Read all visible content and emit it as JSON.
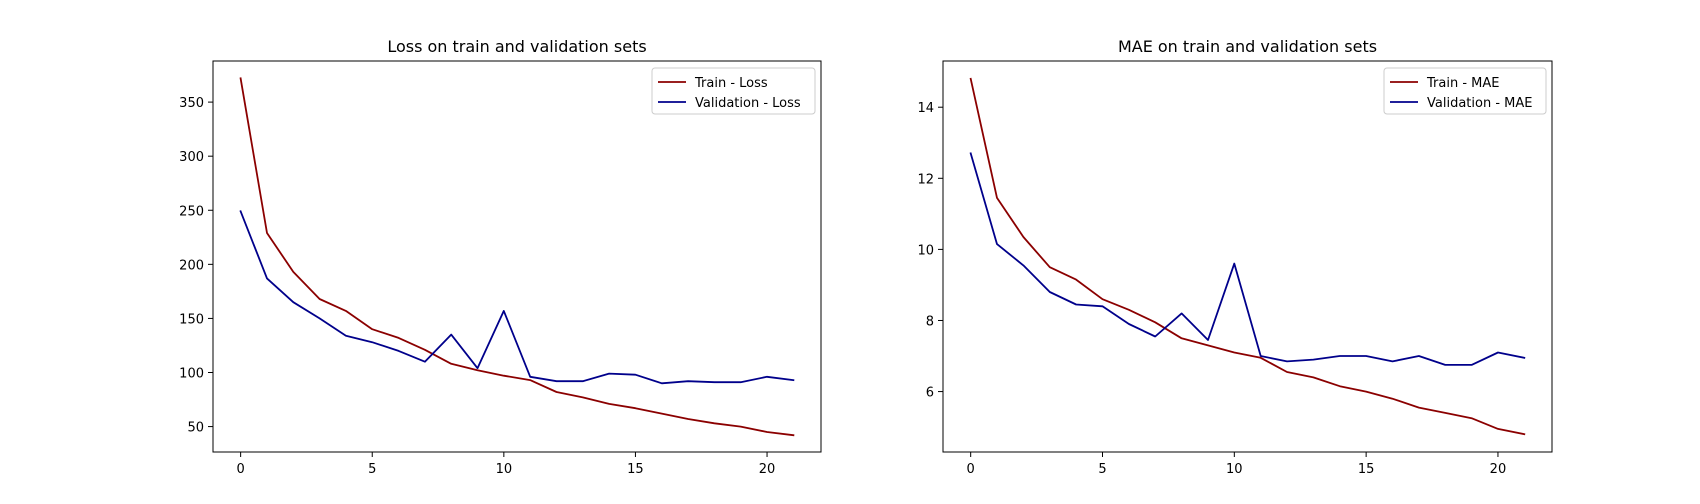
{
  "chart_data": [
    {
      "type": "line",
      "title": "Loss on train and validation sets",
      "xlabel": "",
      "ylabel": "",
      "x": [
        0,
        1,
        2,
        3,
        4,
        5,
        6,
        7,
        8,
        9,
        10,
        11,
        12,
        13,
        14,
        15,
        16,
        17,
        18,
        19,
        20,
        21
      ],
      "xlim": [
        -1.05,
        22.05
      ],
      "ylim": [
        26.5,
        388
      ],
      "xticks": [
        0,
        5,
        10,
        15,
        20
      ],
      "yticks": [
        50,
        100,
        150,
        200,
        250,
        300,
        350
      ],
      "grid": false,
      "legend": "top-right",
      "series": [
        {
          "name": "Train - Loss",
          "color": "#8b0000",
          "values": [
            372,
            229,
            193,
            168,
            157,
            140,
            132,
            121,
            108,
            102,
            97,
            93,
            82,
            77,
            71,
            67,
            62,
            57,
            53,
            50,
            45,
            42
          ]
        },
        {
          "name": "Validation - Loss",
          "color": "#00008b",
          "values": [
            249,
            187,
            165,
            150,
            134,
            128,
            120,
            110,
            135,
            104,
            157,
            96,
            92,
            92,
            99,
            98,
            90,
            92,
            91,
            91,
            96,
            93
          ]
        }
      ]
    },
    {
      "type": "line",
      "title": "MAE on train and validation sets",
      "xlabel": "",
      "ylabel": "",
      "x": [
        0,
        1,
        2,
        3,
        4,
        5,
        6,
        7,
        8,
        9,
        10,
        11,
        12,
        13,
        14,
        15,
        16,
        17,
        18,
        19,
        20,
        21
      ],
      "xlim": [
        -1.05,
        22.05
      ],
      "ylim": [
        4.3,
        15.3
      ],
      "xticks": [
        0,
        5,
        10,
        15,
        20
      ],
      "yticks": [
        6,
        8,
        10,
        12,
        14
      ],
      "grid": false,
      "legend": "top-right",
      "series": [
        {
          "name": "Train - MAE",
          "color": "#8b0000",
          "values": [
            14.8,
            11.45,
            10.35,
            9.5,
            9.15,
            8.6,
            8.3,
            7.95,
            7.5,
            7.3,
            7.1,
            6.95,
            6.55,
            6.4,
            6.15,
            6.0,
            5.8,
            5.55,
            5.4,
            5.25,
            4.95,
            4.8
          ]
        },
        {
          "name": "Validation - MAE",
          "color": "#00008b",
          "values": [
            12.7,
            10.15,
            9.55,
            8.8,
            8.45,
            8.4,
            7.9,
            7.55,
            8.2,
            7.45,
            9.6,
            7.0,
            6.85,
            6.9,
            7.0,
            7.0,
            6.85,
            7.0,
            6.75,
            6.75,
            7.1,
            6.95
          ]
        }
      ]
    }
  ]
}
